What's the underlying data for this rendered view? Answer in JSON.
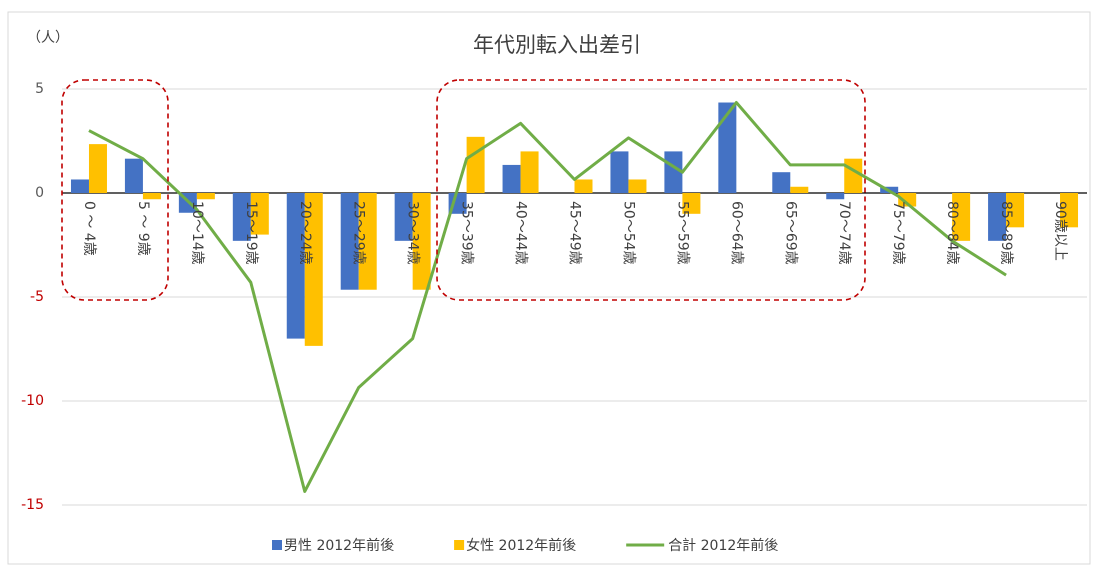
{
  "chart_data": {
    "type": "bar_line",
    "title": "年代別転入出差引",
    "y_unit_label": "（人）",
    "categories": [
      "0 ～ 4歳",
      "5 ～ 9歳",
      "10～14歳",
      "15～19歳",
      "20～24歳",
      "25～29歳",
      "30～34歳",
      "35～39歳",
      "40～44歳",
      "45～49歳",
      "50～54歳",
      "55～59歳",
      "60～64歳",
      "65～69歳",
      "70～74歳",
      "75～79歳",
      "80～84歳",
      "85～89歳",
      "90歳以上"
    ],
    "series": [
      {
        "name": "男性 2012年前後",
        "type": "bar",
        "color": "#4472c4",
        "values": [
          0.65,
          1.65,
          -0.95,
          -2.3,
          -7.0,
          -4.65,
          -2.3,
          -1.0,
          1.35,
          0,
          2.0,
          2.0,
          4.35,
          1.0,
          -0.3,
          0.3,
          0,
          -2.3,
          0
        ]
      },
      {
        "name": "女性 2012年前後",
        "type": "bar",
        "color": "#ffc000",
        "values": [
          2.35,
          -0.3,
          -0.3,
          -2.0,
          -7.35,
          -4.65,
          -4.65,
          2.7,
          2.0,
          0.65,
          0.65,
          -1.0,
          0,
          0.3,
          1.65,
          -0.65,
          -2.3,
          -1.65,
          -1.65
        ]
      },
      {
        "name": "合計 2012年前後",
        "type": "line",
        "color": "#70ad47",
        "values": [
          3.0,
          1.65,
          -0.8,
          -4.3,
          -14.35,
          -9.35,
          -7.0,
          1.65,
          3.35,
          0.65,
          2.65,
          1.0,
          4.35,
          1.35,
          1.35,
          -0.15,
          -2.3,
          -3.95,
          null
        ]
      }
    ],
    "ylim": [
      -16,
      5
    ],
    "yticks": [
      5,
      0,
      -5,
      -10,
      -15
    ],
    "tick_color": "#595959",
    "negative_tick_color": "#c00000",
    "grid": true,
    "legend": "bottom"
  }
}
